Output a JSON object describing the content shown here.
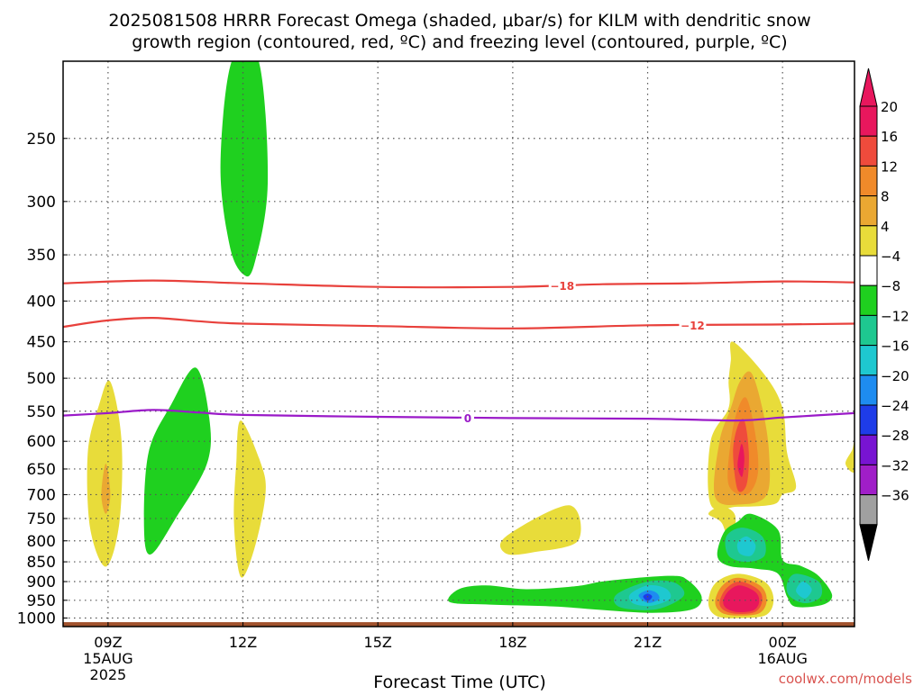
{
  "header": {
    "title_line1": "2025081508 HRRR Forecast Omega (shaded, μbar/s) for KILM with dendritic snow",
    "title_line2": "growth region (contoured, red, ºC) and freezing level (contoured, purple, ºC)"
  },
  "footer": {
    "xlabel": "Forecast Time (UTC)",
    "credit": "coolwx.com/models"
  },
  "colors": {
    "frame": "#000000",
    "grid": "#555555",
    "dgz_contour": "#e8413c",
    "freezing_contour": "#9a1ac8",
    "ground": "#a0522d",
    "credit": "#d9534f"
  },
  "chart_data": {
    "type": "heatmap",
    "variable": "omega",
    "units": "μbar/s",
    "x_axis": {
      "unit": "hours",
      "range": [
        8,
        25.6
      ],
      "ticks": [
        {
          "hour": 9,
          "label": "09Z",
          "date": "15AUG",
          "year": "2025"
        },
        {
          "hour": 12,
          "label": "12Z"
        },
        {
          "hour": 15,
          "label": "15Z"
        },
        {
          "hour": 18,
          "label": "18Z"
        },
        {
          "hour": 21,
          "label": "21Z"
        },
        {
          "hour": 24,
          "label": "00Z",
          "date": "16AUG"
        }
      ]
    },
    "y_axis": {
      "unit": "hPa",
      "range": [
        1025,
        200
      ],
      "ticks": [
        250,
        300,
        350,
        400,
        450,
        500,
        550,
        600,
        650,
        700,
        750,
        800,
        850,
        900,
        950,
        1000
      ]
    },
    "grid": true,
    "colorbar": {
      "placement": "right",
      "levels": [
        {
          "label": "20",
          "color": "#e8175d"
        },
        {
          "label": "16",
          "color": "#ef4b3c"
        },
        {
          "label": "12",
          "color": "#f08a2a"
        },
        {
          "label": "8",
          "color": "#eaa832"
        },
        {
          "label": "4",
          "color": "#e8dc3a"
        },
        {
          "label": "−4",
          "color": "#ffffff"
        },
        {
          "label": "−8",
          "color": "#1fd01f"
        },
        {
          "label": "−12",
          "color": "#1ec890"
        },
        {
          "label": "−16",
          "color": "#1ec8d0"
        },
        {
          "label": "−20",
          "color": "#1e8cf0"
        },
        {
          "label": "−24",
          "color": "#1e3ce8"
        },
        {
          "label": "−28",
          "color": "#7814d2"
        },
        {
          "label": "−32",
          "color": "#a01ec8"
        },
        {
          "label": "−36",
          "color": "#a0a0a0"
        }
      ],
      "top_arrow_color": "#e8175d",
      "bottom_arrow_color": "#000000"
    },
    "contours": [
      {
        "name": "-18",
        "color": "#e8413c",
        "label_at": 19.1,
        "points": [
          [
            8,
            380
          ],
          [
            10,
            377
          ],
          [
            12,
            380
          ],
          [
            15,
            384
          ],
          [
            18,
            384
          ],
          [
            20,
            381
          ],
          [
            22,
            380
          ],
          [
            24,
            378
          ],
          [
            25.6,
            379
          ]
        ]
      },
      {
        "name": "-12",
        "color": "#e8413c",
        "label_at": 22.0,
        "points": [
          [
            8,
            431
          ],
          [
            9,
            423
          ],
          [
            10,
            420
          ],
          [
            11,
            424
          ],
          [
            12,
            427
          ],
          [
            15,
            430
          ],
          [
            18,
            433
          ],
          [
            21,
            429
          ],
          [
            24,
            428
          ],
          [
            25.6,
            427
          ]
        ]
      },
      {
        "name": "0",
        "color": "#9a1ac8",
        "label_at": 17.0,
        "points": [
          [
            8,
            557
          ],
          [
            9,
            553
          ],
          [
            10,
            548
          ],
          [
            11,
            552
          ],
          [
            12,
            556
          ],
          [
            15,
            559
          ],
          [
            18,
            561
          ],
          [
            21,
            562
          ],
          [
            23,
            565
          ],
          [
            24,
            560
          ],
          [
            25.6,
            553
          ]
        ]
      }
    ],
    "shaded_regions": [
      {
        "color": "#1fd01f",
        "points": [
          [
            11.75,
            200
          ],
          [
            12.35,
            200
          ],
          [
            12.55,
            285
          ],
          [
            12.25,
            360
          ],
          [
            12,
            370
          ],
          [
            11.7,
            340
          ],
          [
            11.5,
            270
          ]
        ]
      },
      {
        "color": "#1fd01f",
        "points": [
          [
            10.95,
            485
          ],
          [
            11.25,
            560
          ],
          [
            11.2,
            640
          ],
          [
            10.5,
            750
          ],
          [
            9.95,
            832
          ],
          [
            9.8,
            770
          ],
          [
            9.9,
            620
          ],
          [
            10.4,
            540
          ]
        ]
      },
      {
        "color": "#e8dc3a",
        "points": [
          [
            9.05,
            505
          ],
          [
            9.3,
            600
          ],
          [
            9.25,
            760
          ],
          [
            8.95,
            862
          ],
          [
            8.6,
            770
          ],
          [
            8.55,
            620
          ],
          [
            8.8,
            540
          ]
        ]
      },
      {
        "color": "#eaa832",
        "points": [
          [
            8.95,
            640
          ],
          [
            9.05,
            700
          ],
          [
            8.95,
            740
          ],
          [
            8.85,
            700
          ]
        ]
      },
      {
        "color": "#e8dc3a",
        "points": [
          [
            11.95,
            565
          ],
          [
            12.4,
            640
          ],
          [
            12.5,
            700
          ],
          [
            12.25,
            820
          ],
          [
            11.95,
            888
          ],
          [
            11.8,
            760
          ],
          [
            11.85,
            640
          ]
        ]
      },
      {
        "color": "#e8dc3a",
        "points": [
          [
            19.25,
            722
          ],
          [
            19.45,
            800
          ],
          [
            18.45,
            827
          ],
          [
            17.85,
            830
          ],
          [
            17.85,
            790
          ]
        ]
      },
      {
        "color": "#1fd01f",
        "points": [
          [
            16.6,
            955
          ],
          [
            16.8,
            920
          ],
          [
            17.4,
            910
          ],
          [
            18.3,
            920
          ],
          [
            19.4,
            912
          ],
          [
            20.1,
            898
          ],
          [
            21.5,
            885
          ],
          [
            21.9,
            897
          ],
          [
            22.2,
            940
          ],
          [
            22.0,
            975
          ],
          [
            21.1,
            985
          ],
          [
            20.0,
            977
          ],
          [
            18.9,
            967
          ],
          [
            17.5,
            962
          ]
        ]
      },
      {
        "color": "#1ec890",
        "points": [
          [
            20.3,
            935
          ],
          [
            21.0,
            900
          ],
          [
            21.6,
            903
          ],
          [
            21.8,
            938
          ],
          [
            21.2,
            975
          ],
          [
            20.4,
            970
          ]
        ]
      },
      {
        "color": "#1ec8d0",
        "points": [
          [
            20.6,
            935
          ],
          [
            21.0,
            910
          ],
          [
            21.4,
            918
          ],
          [
            21.5,
            945
          ],
          [
            21.1,
            965
          ],
          [
            20.7,
            960
          ]
        ]
      },
      {
        "color": "#1e8cf0",
        "points": [
          [
            20.8,
            937
          ],
          [
            21.0,
            923
          ],
          [
            21.2,
            930
          ],
          [
            21.25,
            947
          ],
          [
            21.0,
            957
          ]
        ]
      },
      {
        "color": "#1e3ce8",
        "points": [
          [
            20.9,
            940
          ],
          [
            21.0,
            932
          ],
          [
            21.1,
            940
          ],
          [
            21.0,
            952
          ]
        ]
      },
      {
        "color": "#e8dc3a",
        "points": [
          [
            22.9,
            450
          ],
          [
            23.6,
            495
          ],
          [
            24.0,
            545
          ],
          [
            24.1,
            620
          ],
          [
            24.3,
            685
          ],
          [
            24.0,
            700
          ],
          [
            23.8,
            720
          ],
          [
            23.0,
            725
          ],
          [
            22.4,
            720
          ],
          [
            22.4,
            600
          ],
          [
            22.8,
            545
          ],
          [
            22.8,
            505
          ],
          [
            22.85,
            475
          ]
        ]
      },
      {
        "color": "#eaa832",
        "points": [
          [
            23.3,
            492
          ],
          [
            23.55,
            545
          ],
          [
            23.7,
            620
          ],
          [
            23.65,
            700
          ],
          [
            23.1,
            720
          ],
          [
            22.5,
            705
          ],
          [
            22.6,
            600
          ],
          [
            22.85,
            545
          ],
          [
            23.05,
            505
          ]
        ]
      },
      {
        "color": "#f08a2a",
        "points": [
          [
            23.2,
            530
          ],
          [
            23.4,
            590
          ],
          [
            23.45,
            660
          ],
          [
            23.2,
            700
          ],
          [
            22.8,
            680
          ],
          [
            22.85,
            600
          ],
          [
            23.0,
            548
          ]
        ]
      },
      {
        "color": "#ef4b3c",
        "points": [
          [
            23.15,
            565
          ],
          [
            23.25,
            620
          ],
          [
            23.2,
            680
          ],
          [
            23.0,
            690
          ],
          [
            22.9,
            620
          ],
          [
            23.0,
            575
          ]
        ]
      },
      {
        "color": "#e8175d",
        "points": [
          [
            23.1,
            605
          ],
          [
            23.15,
            630
          ],
          [
            23.1,
            665
          ],
          [
            23.0,
            645
          ],
          [
            23.05,
            615
          ]
        ]
      },
      {
        "color": "#e8dc3a",
        "points": [
          [
            25.6,
            600
          ],
          [
            25.6,
            655
          ],
          [
            25.4,
            640
          ],
          [
            25.55,
            615
          ]
        ]
      },
      {
        "color": "#e8dc3a",
        "points": [
          [
            22.65,
            725
          ],
          [
            22.95,
            745
          ],
          [
            22.85,
            815
          ],
          [
            22.65,
            760
          ],
          [
            22.35,
            740
          ]
        ]
      },
      {
        "color": "#1fd01f",
        "points": [
          [
            23.3,
            740
          ],
          [
            23.9,
            775
          ],
          [
            24.0,
            845
          ],
          [
            24.4,
            860
          ],
          [
            24.8,
            885
          ],
          [
            25.1,
            935
          ],
          [
            24.9,
            962
          ],
          [
            24.3,
            968
          ],
          [
            24.1,
            940
          ],
          [
            23.9,
            880
          ],
          [
            23.4,
            867
          ],
          [
            22.8,
            860
          ],
          [
            22.55,
            835
          ],
          [
            22.7,
            780
          ],
          [
            23.0,
            757
          ]
        ]
      },
      {
        "color": "#1ec890",
        "points": [
          [
            23.1,
            770
          ],
          [
            23.55,
            790
          ],
          [
            23.6,
            835
          ],
          [
            23.2,
            850
          ],
          [
            22.8,
            835
          ],
          [
            22.75,
            790
          ]
        ]
      },
      {
        "color": "#1ec8d0",
        "points": [
          [
            23.2,
            790
          ],
          [
            23.4,
            810
          ],
          [
            23.3,
            835
          ],
          [
            23.05,
            830
          ],
          [
            23.0,
            805
          ]
        ]
      },
      {
        "color": "#1ec890",
        "points": [
          [
            24.3,
            880
          ],
          [
            24.8,
            900
          ],
          [
            24.85,
            940
          ],
          [
            24.5,
            958
          ],
          [
            24.15,
            938
          ],
          [
            24.1,
            905
          ]
        ]
      },
      {
        "color": "#1ec8d0",
        "points": [
          [
            24.45,
            900
          ],
          [
            24.65,
            920
          ],
          [
            24.5,
            945
          ],
          [
            24.3,
            925
          ]
        ]
      },
      {
        "color": "#e8dc3a",
        "points": [
          [
            23.0,
            880
          ],
          [
            23.6,
            900
          ],
          [
            23.8,
            945
          ],
          [
            23.65,
            990
          ],
          [
            23.1,
            1000
          ],
          [
            22.55,
            995
          ],
          [
            22.35,
            960
          ],
          [
            22.5,
            905
          ]
        ]
      },
      {
        "color": "#f08a2a",
        "points": [
          [
            23.0,
            890
          ],
          [
            23.5,
            910
          ],
          [
            23.65,
            948
          ],
          [
            23.5,
            985
          ],
          [
            23.05,
            993
          ],
          [
            22.65,
            985
          ],
          [
            22.5,
            955
          ],
          [
            22.65,
            912
          ]
        ]
      },
      {
        "color": "#ef4b3c",
        "points": [
          [
            23.05,
            900
          ],
          [
            23.45,
            920
          ],
          [
            23.55,
            950
          ],
          [
            23.4,
            982
          ],
          [
            23.0,
            988
          ],
          [
            22.7,
            978
          ],
          [
            22.6,
            955
          ],
          [
            22.75,
            918
          ]
        ]
      },
      {
        "color": "#e8175d",
        "points": [
          [
            23.05,
            910
          ],
          [
            23.4,
            928
          ],
          [
            23.48,
            955
          ],
          [
            23.35,
            978
          ],
          [
            23.0,
            983
          ],
          [
            22.75,
            972
          ],
          [
            22.68,
            952
          ],
          [
            22.8,
            925
          ]
        ]
      }
    ],
    "ground": {
      "top": 1012,
      "bottom": 1025
    }
  }
}
